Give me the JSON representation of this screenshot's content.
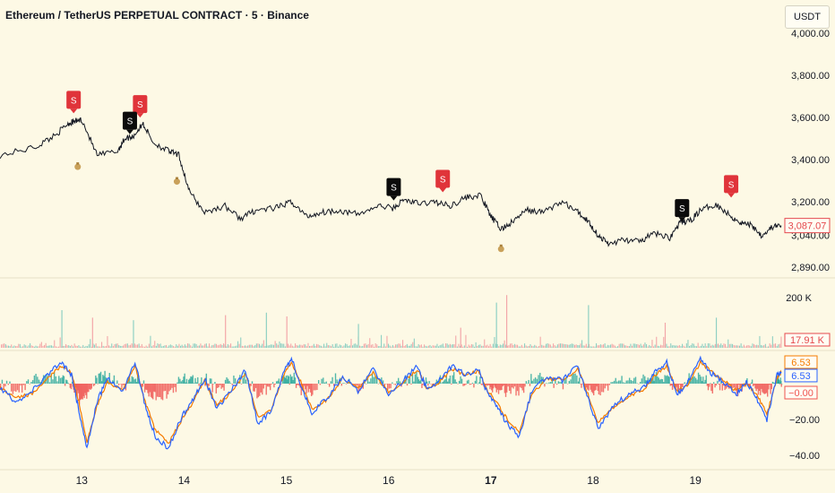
{
  "header": {
    "title": "Ethereum / TetherUS PERPETUAL CONTRACT · 5 · Binance",
    "currency": "USDT"
  },
  "colors": {
    "background": "#fdf9e5",
    "price_line": "#131722",
    "sell_marker": "#e0343a",
    "buy_marker": "#0b0b0b",
    "volume_up": "#8fd0c3",
    "volume_down": "#f3a7a9",
    "osc_blue": "#2962ff",
    "osc_orange": "#f57c00",
    "hist_pos": "#26a69a",
    "hist_neg": "#ef5350",
    "price_tag": "#e5484d"
  },
  "chart_data": [
    {
      "type": "line",
      "name": "price",
      "y_ticks": [
        "4,000.00",
        "3,800.00",
        "3,600.00",
        "3,400.00",
        "3,200.00",
        "3,040.00",
        "2,890.00"
      ],
      "ylim": [
        2860,
        4030
      ],
      "x_ticks": [
        "13",
        "14",
        "15",
        "16",
        "17",
        "18",
        "19"
      ],
      "bold_x_tick": "17",
      "xlim": [
        12.2,
        19.84
      ],
      "last_price": "3,087.07",
      "x": [
        12.2,
        12.55,
        12.75,
        12.86,
        12.92,
        13.0,
        13.15,
        13.35,
        13.42,
        13.5,
        13.6,
        13.7,
        13.85,
        13.95,
        14.05,
        14.2,
        14.4,
        14.55,
        14.7,
        14.9,
        15.05,
        15.2,
        15.35,
        15.5,
        15.7,
        15.9,
        16.05,
        16.15,
        16.3,
        16.45,
        16.6,
        16.75,
        16.9,
        17.0,
        17.1,
        17.2,
        17.35,
        17.5,
        17.7,
        17.85,
        17.95,
        18.05,
        18.15,
        18.3,
        18.45,
        18.6,
        18.75,
        18.85,
        18.95,
        19.05,
        19.2,
        19.35,
        19.45,
        19.55,
        19.65,
        19.75,
        19.84
      ],
      "y": [
        3420,
        3460,
        3520,
        3570,
        3580,
        3590,
        3420,
        3440,
        3500,
        3510,
        3570,
        3480,
        3440,
        3420,
        3250,
        3150,
        3180,
        3120,
        3160,
        3170,
        3200,
        3130,
        3150,
        3160,
        3140,
        3180,
        3170,
        3210,
        3190,
        3200,
        3180,
        3220,
        3230,
        3130,
        3070,
        3100,
        3160,
        3150,
        3200,
        3150,
        3110,
        3040,
        3000,
        3020,
        3010,
        3050,
        3030,
        3100,
        3110,
        3160,
        3190,
        3130,
        3100,
        3090,
        3040,
        3080,
        3087
      ]
    },
    {
      "type": "bar",
      "name": "volume",
      "y_ticks": [
        "200 K"
      ],
      "ylim": [
        0,
        250
      ],
      "last_value": "17.91 K",
      "spike_x": [
        12.8,
        13.1,
        13.5,
        14.4,
        14.8,
        15.0,
        15.7,
        16.7,
        17.05,
        17.15,
        17.95,
        18.7,
        19.2
      ],
      "spike_values": [
        150,
        120,
        110,
        130,
        140,
        125,
        95,
        80,
        180,
        210,
        170,
        100,
        120
      ]
    },
    {
      "type": "line",
      "name": "oscillator",
      "y_ticks": [
        "−20.00",
        "−40.00"
      ],
      "ylim": [
        -46,
        17
      ],
      "values": {
        "orange": "6.53",
        "blue": "6.53",
        "histogram": "−0.00"
      },
      "x": [
        12.2,
        12.35,
        12.5,
        12.65,
        12.8,
        12.9,
        12.97,
        13.05,
        13.15,
        13.25,
        13.4,
        13.52,
        13.62,
        13.72,
        13.85,
        13.98,
        14.08,
        14.2,
        14.32,
        14.45,
        14.6,
        14.72,
        14.85,
        14.97,
        15.05,
        15.15,
        15.25,
        15.4,
        15.55,
        15.7,
        15.85,
        16.0,
        16.15,
        16.28,
        16.38,
        16.5,
        16.62,
        16.75,
        16.88,
        16.97,
        17.05,
        17.15,
        17.28,
        17.4,
        17.55,
        17.7,
        17.85,
        17.95,
        18.05,
        18.2,
        18.35,
        18.5,
        18.6,
        18.72,
        18.82,
        18.92,
        19.05,
        19.15,
        19.27,
        19.4,
        19.5,
        19.6,
        19.7,
        19.8,
        19.84
      ],
      "blue": [
        -2,
        -10,
        -5,
        4,
        12,
        5,
        -15,
        -36,
        -10,
        3,
        -5,
        12,
        -12,
        -30,
        -36,
        -18,
        -10,
        3,
        -14,
        -5,
        8,
        -22,
        -16,
        6,
        14,
        -2,
        -16,
        -8,
        4,
        -4,
        8,
        -6,
        2,
        10,
        -4,
        2,
        10,
        5,
        8,
        -6,
        -12,
        -22,
        -30,
        -4,
        4,
        2,
        10,
        -8,
        -25,
        -12,
        -6,
        -2,
        6,
        12,
        -6,
        0,
        14,
        6,
        1,
        -6,
        1,
        -8,
        -20,
        5,
        6.53
      ],
      "orange": [
        -2,
        -8,
        -6,
        2,
        10,
        6,
        -10,
        -32,
        -12,
        1,
        -4,
        10,
        -10,
        -26,
        -33,
        -20,
        -11,
        2,
        -12,
        -6,
        6,
        -18,
        -15,
        4,
        12,
        0,
        -14,
        -9,
        3,
        -3,
        6,
        -5,
        1,
        8,
        -3,
        1,
        8,
        5,
        7,
        -4,
        -10,
        -19,
        -27,
        -6,
        3,
        2,
        8,
        -6,
        -22,
        -13,
        -7,
        -3,
        4,
        10,
        -4,
        -1,
        12,
        7,
        2,
        -4,
        0,
        -6,
        -17,
        3,
        6.53
      ]
    }
  ],
  "markers": {
    "sell_x": [
      12.92,
      13.57,
      16.53,
      19.35
    ],
    "sell_price": [
      3590,
      3570,
      3215,
      3190
    ],
    "buy_x": [
      13.47,
      16.05,
      18.87
    ],
    "buy_price": [
      3500,
      3185,
      3085
    ],
    "sell_label": "S",
    "buy_label": "S",
    "money_bag_x": [
      12.96,
      13.93,
      17.1
    ],
    "money_bag_price": [
      3370,
      3300,
      2980
    ],
    "money_bag_icon": "money-bag-icon"
  }
}
